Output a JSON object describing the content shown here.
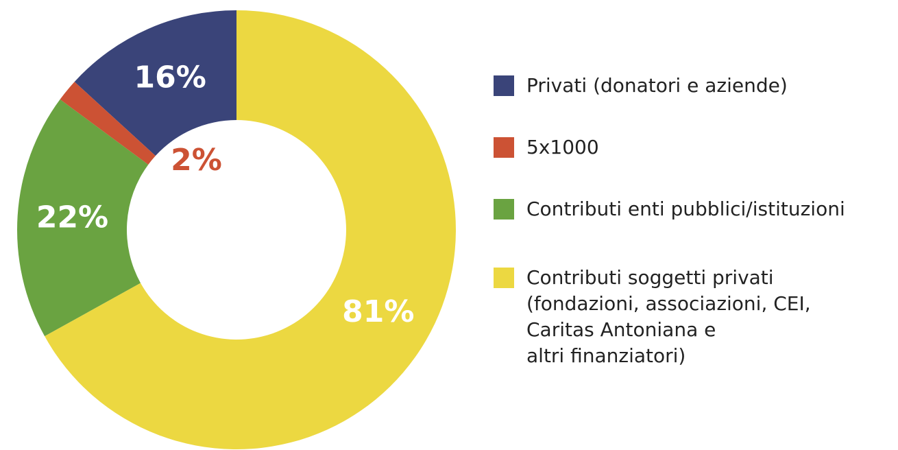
{
  "chart_data": {
    "type": "donut",
    "series": [
      {
        "name": "Privati (donatori e aziende)",
        "color": "#3a4479",
        "values": [
          16
        ],
        "value_labels": [
          "16%"
        ]
      },
      {
        "name": "5x1000",
        "color": "#cc5234",
        "values": [
          2
        ],
        "value_labels": [
          "2%"
        ]
      },
      {
        "name": "Contributi enti pubblici/istituzioni",
        "color": "#6aa341",
        "values": [
          22
        ],
        "value_labels": [
          "22%"
        ]
      },
      {
        "name": "Contributi soggetti privati\n(fondazioni, associazioni, CEI,\nCaritas Antoniana e\naltri finanziatori)",
        "color": "#ecd841",
        "values": [
          81
        ],
        "value_labels": [
          "81%"
        ]
      }
    ]
  }
}
